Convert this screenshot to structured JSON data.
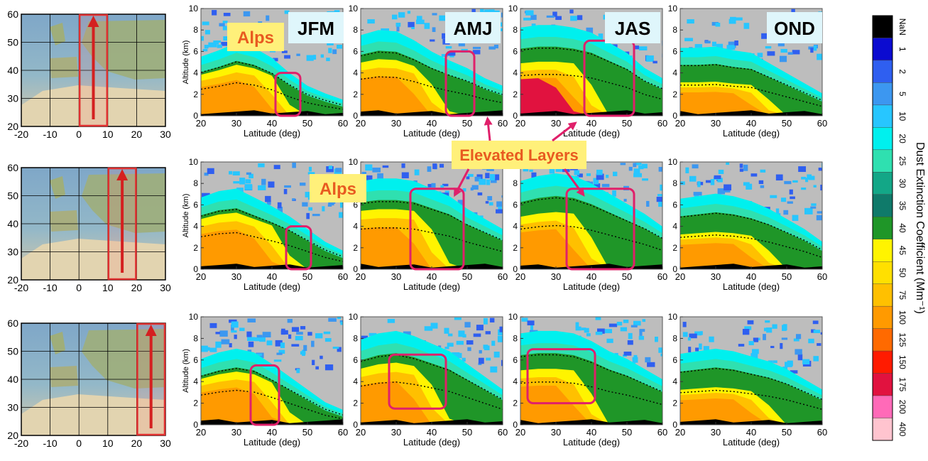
{
  "chart_data": {
    "type": "heatmap",
    "colorbar": {
      "title": "Dust Extinction Coefficient (Mm⁻¹)",
      "levels": [
        "NaN",
        "1",
        "2",
        "5",
        "10",
        "20",
        "25",
        "30",
        "35",
        "40",
        "45",
        "50",
        "75",
        "100",
        "125",
        "150",
        "175",
        "200",
        "400"
      ],
      "colors": [
        "#000000",
        "#0b0bd0",
        "#2f5ff0",
        "#3c97f0",
        "#27c6ff",
        "#00f0ee",
        "#2fe0b0",
        "#13a787",
        "#0f7a6a",
        "#1f9628",
        "#fff400",
        "#ffe000",
        "#ffc000",
        "#ff9a00",
        "#ff6a00",
        "#ff1b00",
        "#e1123f",
        "#ff6ab8",
        "#ffc4cf"
      ]
    },
    "maps": [
      {
        "row": 1,
        "xlim": [
          -20,
          30
        ],
        "ylim": [
          20,
          60
        ],
        "xticks": [
          "-20",
          "-10",
          "0",
          "10",
          "20",
          "30"
        ],
        "yticks": [
          "20",
          "30",
          "40",
          "50",
          "60"
        ],
        "box_lon": [
          0,
          10
        ]
      },
      {
        "row": 2,
        "xlim": [
          -20,
          30
        ],
        "ylim": [
          20,
          60
        ],
        "xticks": [
          "-20",
          "-10",
          "0",
          "10",
          "20",
          "30"
        ],
        "yticks": [
          "20",
          "30",
          "40",
          "50",
          "60"
        ],
        "box_lon": [
          10,
          20
        ]
      },
      {
        "row": 3,
        "xlim": [
          -20,
          30
        ],
        "ylim": [
          20,
          60
        ],
        "xticks": [
          "-20",
          "-10",
          "0",
          "10",
          "20",
          "30"
        ],
        "yticks": [
          "20",
          "30",
          "40",
          "50",
          "60"
        ],
        "box_lon": [
          20,
          30
        ]
      }
    ],
    "panels_axes": {
      "xlabel": "Latitude (deg)",
      "ylabel": "Altitude (km)",
      "xlim": [
        20,
        60
      ],
      "ylim": [
        0,
        10
      ],
      "xticks": [
        "20",
        "30",
        "40",
        "50",
        "60"
      ],
      "yticks": [
        "0",
        "2",
        "4",
        "6",
        "8",
        "10"
      ]
    },
    "seasons": [
      "JFM",
      "AMJ",
      "JAS",
      "OND"
    ],
    "panels": [
      {
        "row": 1,
        "season": "JFM",
        "dust_top_km": [
          4.5,
          5,
          5.6,
          5.2,
          4.4,
          3.2,
          2.2,
          1.6,
          1.1
        ],
        "box": {
          "lat": [
            41,
            48
          ],
          "alt": [
            0,
            4
          ]
        }
      },
      {
        "row": 1,
        "season": "AMJ",
        "dust_top_km": [
          6.2,
          6.6,
          6.5,
          5.8,
          4.9,
          4.2,
          3.6,
          2.8,
          2.2
        ],
        "box": {
          "lat": [
            44,
            52
          ],
          "alt": [
            0,
            6
          ]
        }
      },
      {
        "row": 1,
        "season": "JAS",
        "dust_top_km": [
          6.8,
          7,
          7,
          6.8,
          6.4,
          5.6,
          4.8,
          3.6,
          2.8
        ],
        "box": {
          "lat": [
            38,
            52
          ],
          "alt": [
            0,
            7
          ]
        }
      },
      {
        "row": 1,
        "season": "OND",
        "dust_top_km": [
          5.2,
          5.2,
          5.3,
          5,
          4.8,
          4,
          3.2,
          2.4,
          1.6
        ]
      },
      {
        "row": 2,
        "season": "JFM",
        "dust_top_km": [
          5.5,
          6,
          6.2,
          5.5,
          4.8,
          4,
          3,
          2,
          1.3
        ],
        "box": {
          "lat": [
            44,
            51
          ],
          "alt": [
            0,
            4
          ]
        }
      },
      {
        "row": 2,
        "season": "AMJ",
        "dust_top_km": [
          6.8,
          7,
          7,
          6.8,
          6.2,
          5.6,
          4.6,
          3.8,
          3
        ],
        "box": {
          "lat": [
            34,
            49
          ],
          "alt": [
            0,
            7.5
          ]
        }
      },
      {
        "row": 2,
        "season": "JAS",
        "dust_top_km": [
          6.8,
          7.2,
          7.4,
          7.2,
          6.6,
          5.8,
          5,
          4.2,
          3.2
        ],
        "box": {
          "lat": [
            33,
            52
          ],
          "alt": [
            0,
            7.5
          ]
        }
      },
      {
        "row": 2,
        "season": "OND",
        "dust_top_km": [
          5.4,
          5.6,
          5.8,
          5.6,
          5.2,
          4.6,
          3.8,
          3,
          2
        ]
      },
      {
        "row": 3,
        "season": "JFM",
        "dust_top_km": [
          5,
          5.5,
          5.8,
          5.5,
          4.6,
          3.6,
          2.6,
          1.6,
          1
        ],
        "box": {
          "lat": [
            34,
            42
          ],
          "alt": [
            0,
            5.5
          ]
        }
      },
      {
        "row": 3,
        "season": "AMJ",
        "dust_top_km": [
          6.5,
          7,
          7.2,
          6.8,
          6.2,
          5.6,
          4.6,
          3.6,
          2.6
        ],
        "box": {
          "lat": [
            28,
            44
          ],
          "alt": [
            1.5,
            6.5
          ]
        }
      },
      {
        "row": 3,
        "season": "JAS",
        "dust_top_km": [
          7,
          7.2,
          7.2,
          7,
          6.4,
          5.6,
          5,
          4.2,
          3.4
        ],
        "box": {
          "lat": [
            22,
            41
          ],
          "alt": [
            2,
            7
          ]
        }
      },
      {
        "row": 3,
        "season": "OND",
        "dust_top_km": [
          5.4,
          5.6,
          5.8,
          5.6,
          5.2,
          4.8,
          4.2,
          3.4,
          2.6
        ]
      }
    ],
    "annotations": {
      "season_labels": [
        "JFM",
        "AMJ",
        "JAS",
        "OND"
      ],
      "alps_label_1": "Alps",
      "alps_label_2": "Alps",
      "elevated_label": "Elevated Layers"
    }
  }
}
